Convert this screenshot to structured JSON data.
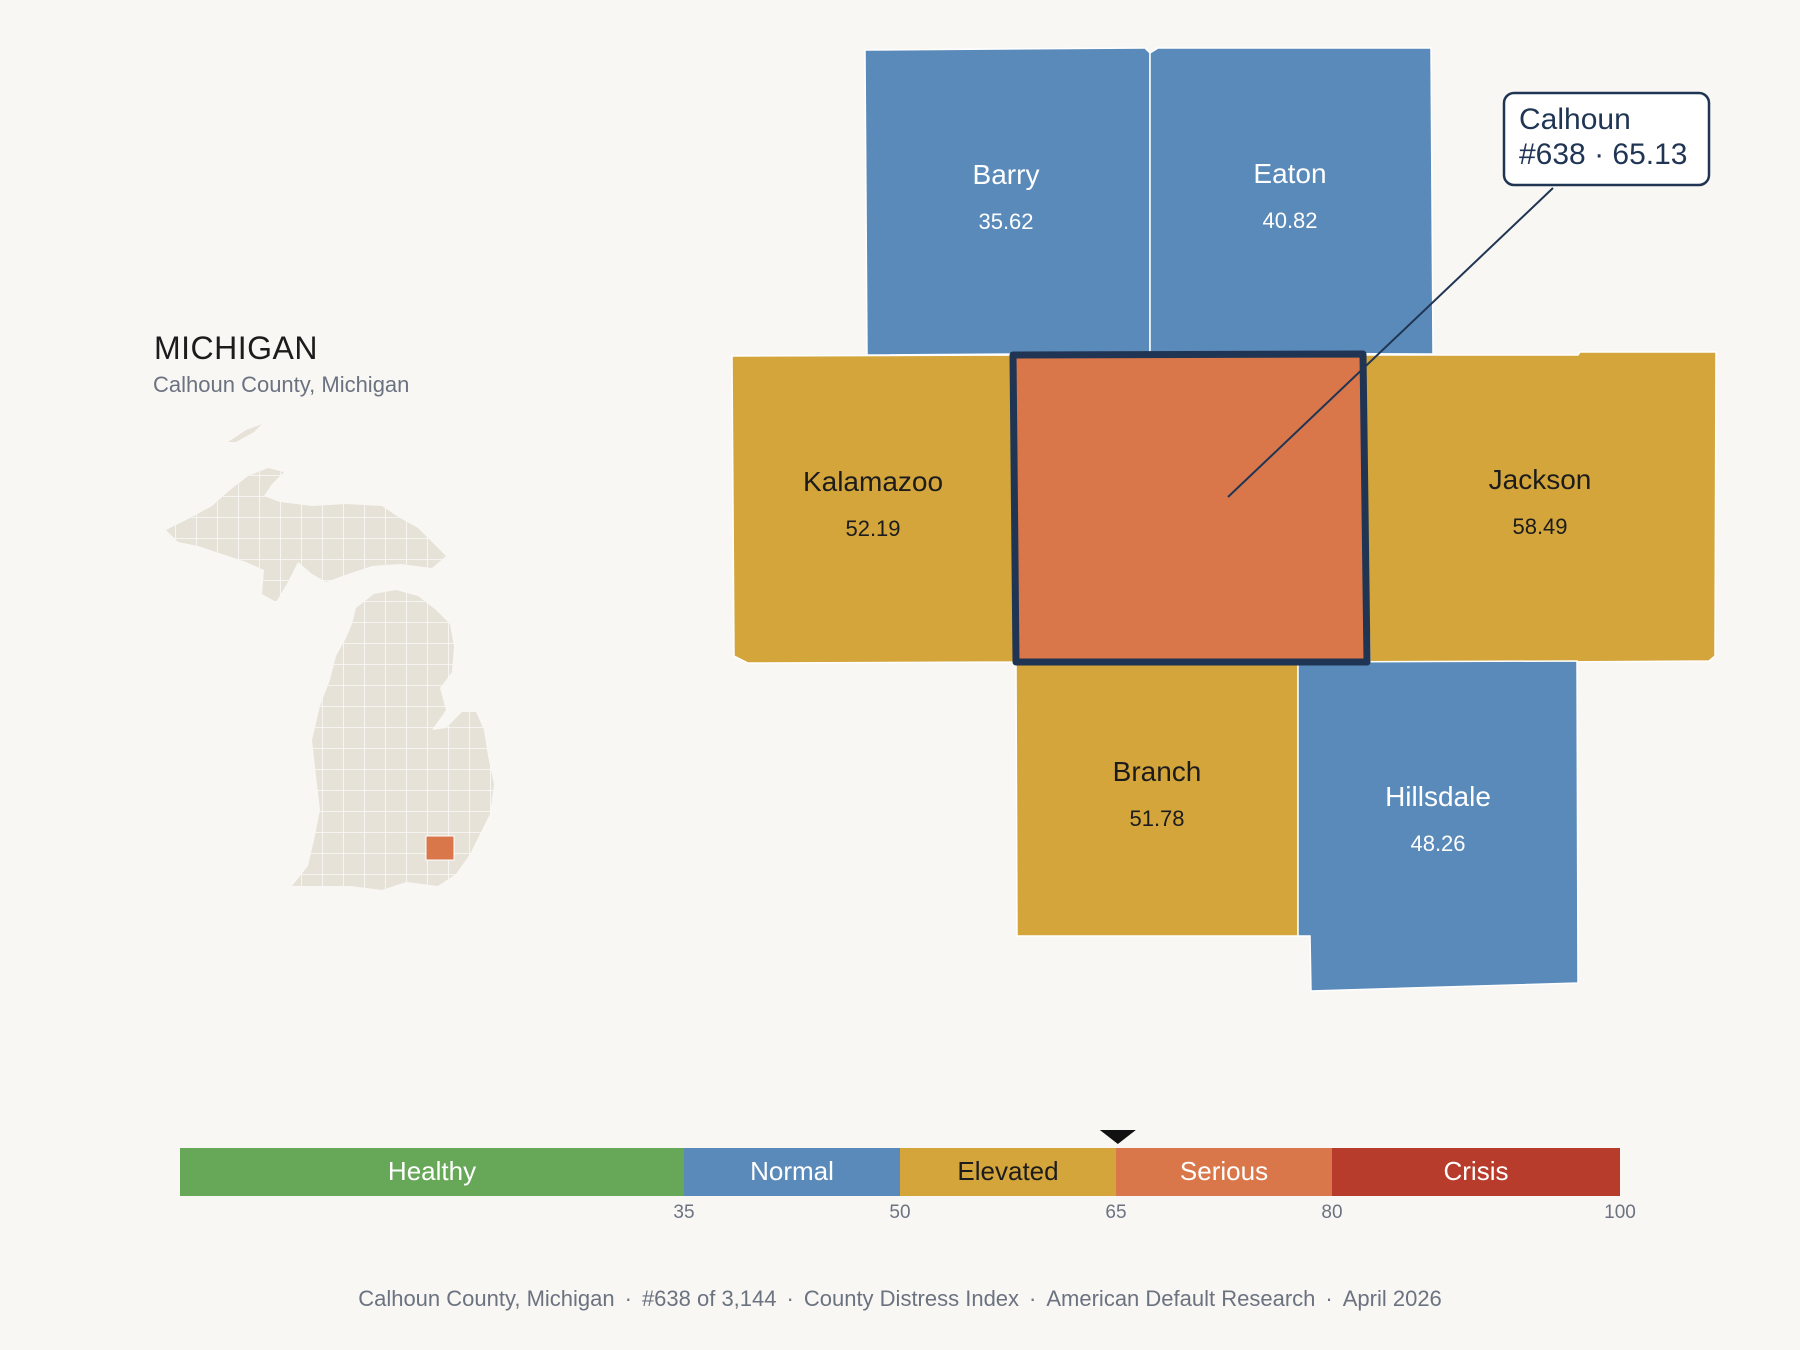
{
  "header": {
    "state": "MICHIGAN",
    "subtitle": "Calhoun County, Michigan"
  },
  "focus_county": {
    "name": "Calhoun",
    "callout_line1": "Calhoun",
    "callout_line2": "#638 · 65.13",
    "rank": 638,
    "score": 65.13,
    "color": "#d9774b"
  },
  "neighbors": [
    {
      "key": "barry",
      "name": "Barry",
      "score": "35.62",
      "tier": "Normal"
    },
    {
      "key": "eaton",
      "name": "Eaton",
      "score": "40.82",
      "tier": "Normal"
    },
    {
      "key": "kalamazoo",
      "name": "Kalamazoo",
      "score": "52.19",
      "tier": "Elevated"
    },
    {
      "key": "jackson",
      "name": "Jackson",
      "score": "58.49",
      "tier": "Elevated"
    },
    {
      "key": "branch",
      "name": "Branch",
      "score": "51.78",
      "tier": "Elevated"
    },
    {
      "key": "hillsdale",
      "name": "Hillsdale",
      "score": "48.26",
      "tier": "Normal"
    }
  ],
  "legend": {
    "segments": [
      {
        "label": "Healthy",
        "from": 0,
        "to": 35,
        "color": "#67a758"
      },
      {
        "label": "Normal",
        "from": 35,
        "to": 50,
        "color": "#5a8ab9"
      },
      {
        "label": "Elevated",
        "from": 50,
        "to": 65,
        "color": "#d3a53b"
      },
      {
        "label": "Serious",
        "from": 65,
        "to": 80,
        "color": "#d9774b"
      },
      {
        "label": "Crisis",
        "from": 80,
        "to": 100,
        "color": "#b83c2c"
      }
    ],
    "ticks": [
      "35",
      "50",
      "65",
      "80",
      "100"
    ],
    "marker_value": 65.13
  },
  "footer": {
    "place": "Calhoun County, Michigan",
    "rank": "#638 of 3,144",
    "index": "County Distress Index",
    "source": "American Default Research",
    "date": "April 2026"
  },
  "colors": {
    "background": "#f9f7f4",
    "locator_land": "#e7e2d7",
    "focus_outline": "#1f3553",
    "normal": "#5a8ab9",
    "elevated": "#d3a53b"
  }
}
